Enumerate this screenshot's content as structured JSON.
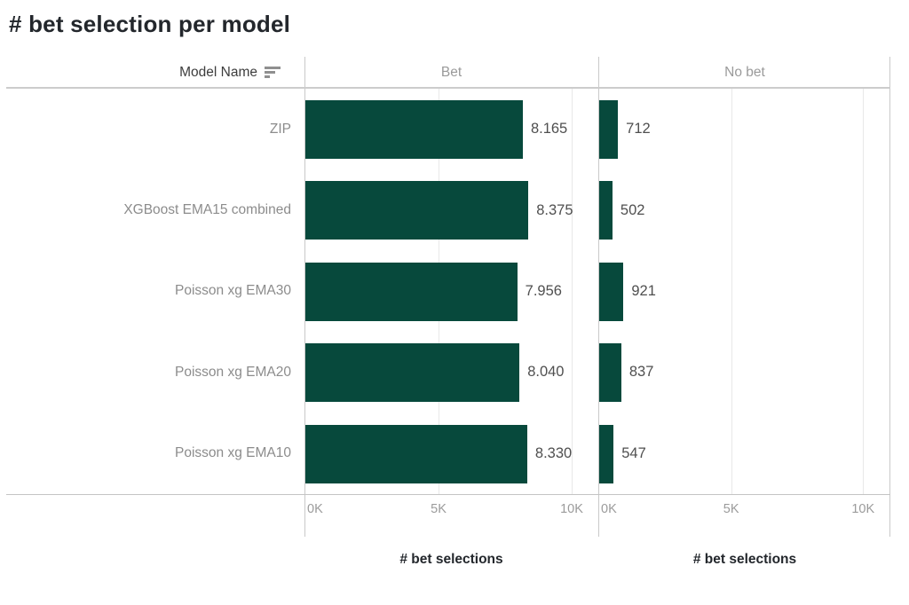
{
  "title": "# bet selection per model",
  "header": {
    "model_column_label": "Model Name",
    "sort_icon": "sort-descending-icon"
  },
  "panels": [
    {
      "label": "Bet",
      "axis_title": "# bet selections"
    },
    {
      "label": "No bet",
      "axis_title": "# bet selections"
    }
  ],
  "axis": {
    "max": 11000,
    "ticks": [
      {
        "label": "0K",
        "value": 0
      },
      {
        "label": "5K",
        "value": 5000
      },
      {
        "label": "10K",
        "value": 10000
      }
    ]
  },
  "chart_data": {
    "type": "bar",
    "orientation": "horizontal",
    "title": "# bet selection per model",
    "categories": [
      "ZIP",
      "XGBoost EMA15 combined",
      "Poisson xg EMA30",
      "Poisson xg EMA20",
      "Poisson xg EMA10"
    ],
    "series": [
      {
        "name": "Bet",
        "values": [
          8165,
          8375,
          7956,
          8040,
          8330
        ],
        "value_labels": [
          "8.165",
          "8.375",
          "7.956",
          "8.040",
          "8.330"
        ]
      },
      {
        "name": "No bet",
        "values": [
          712,
          502,
          921,
          837,
          547
        ],
        "value_labels": [
          "712",
          "502",
          "921",
          "837",
          "547"
        ]
      }
    ],
    "xlabel": "# bet selections",
    "xlim": [
      0,
      11000
    ],
    "x_ticks": [
      "0K",
      "5K",
      "10K"
    ],
    "grid": true,
    "legend": "none",
    "bar_color": "#07493c"
  },
  "colors": {
    "bar": "#07493c",
    "title_text": "#23272c",
    "model_header_text": "#3d3d3d",
    "panel_header_text": "#9a9a9a",
    "row_label_text": "#8c8c8c",
    "value_label_text": "#4f4f4f",
    "tick_text": "#9b9b9b",
    "border": "#c9c9c9",
    "gridline": "#e8e8e8"
  }
}
